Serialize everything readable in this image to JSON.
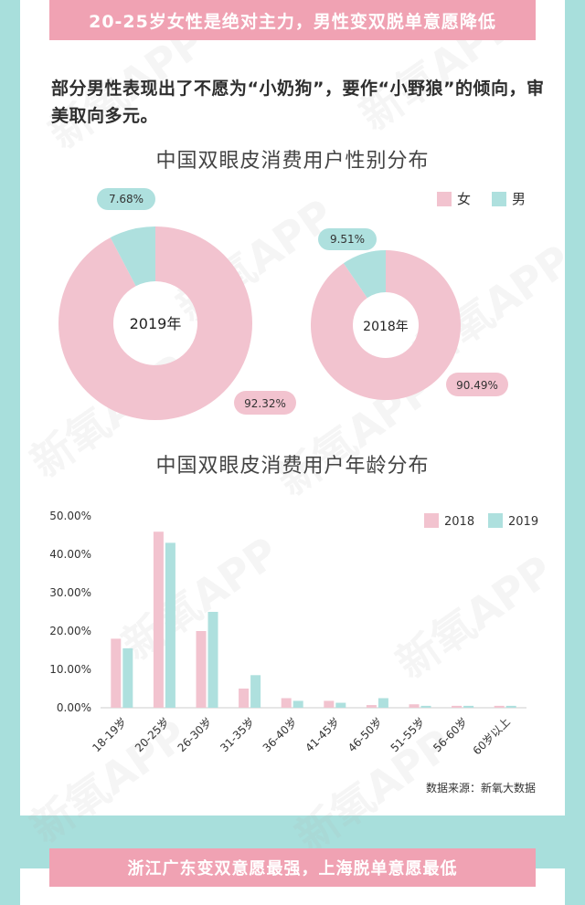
{
  "banner_top": "20-25岁女性是绝对主力，男性变双脱单意愿降低",
  "intro": "部分男性表现出了不愿为“小奶狗”，要作“小野狼”的倾向，审美取向多元。",
  "banner_bottom": "浙江广东变双意愿最强，上海脱单意愿最低",
  "watermark": "新氧APP",
  "colors": {
    "female": "#f2c3cf",
    "male": "#aee0de",
    "banner": "#f0a2b3",
    "frame": "#a8dfdc"
  },
  "chart_data": [
    {
      "type": "pie",
      "title": "中国双眼皮消费用户性别分布",
      "legend": [
        "女",
        "男"
      ],
      "legend_position": "top-right",
      "charts": [
        {
          "center_label": "2019年",
          "slices": [
            {
              "name": "女",
              "value": 92.32,
              "label": "92.32%"
            },
            {
              "name": "男",
              "value": 7.68,
              "label": "7.68%"
            }
          ]
        },
        {
          "center_label": "2018年",
          "slices": [
            {
              "name": "女",
              "value": 90.49,
              "label": "90.49%"
            },
            {
              "name": "男",
              "value": 9.51,
              "label": "9.51%"
            }
          ]
        }
      ]
    },
    {
      "type": "bar",
      "title": "中国双眼皮消费用户年龄分布",
      "categories": [
        "18-19岁",
        "20-25岁",
        "26-30岁",
        "31-35岁",
        "36-40岁",
        "41-45岁",
        "46-50岁",
        "51-55岁",
        "56-60岁",
        "60岁以上"
      ],
      "series": [
        {
          "name": "2018",
          "values": [
            18.0,
            45.9,
            20.0,
            5.0,
            2.5,
            1.8,
            0.7,
            0.9,
            0.5,
            0.5
          ]
        },
        {
          "name": "2019",
          "values": [
            15.5,
            43.0,
            25.0,
            8.5,
            1.8,
            1.3,
            2.5,
            0.5,
            0.5,
            0.5
          ]
        }
      ],
      "ylim": [
        0,
        50
      ],
      "yticks": [
        "0.00%",
        "10.00%",
        "20.00%",
        "30.00%",
        "40.00%",
        "50.00%"
      ],
      "legend_position": "top-right",
      "source": "数据来源：新氧大数据"
    }
  ]
}
